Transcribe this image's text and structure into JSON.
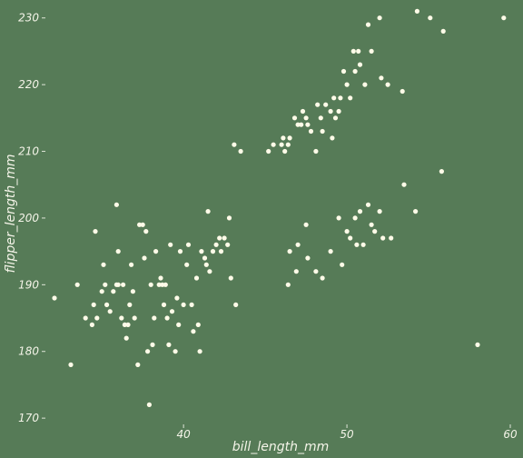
{
  "colors": {
    "background": "#567b57",
    "point": "#fffbe8",
    "text": "#f4f4e8",
    "tick": "#dfe6d8"
  },
  "chart_data": {
    "type": "scatter",
    "title": "",
    "xlabel": "bill_length_mm",
    "ylabel": "flipper_length_mm",
    "xlim": [
      31.6,
      60.0
    ],
    "ylim": [
      169.2,
      231.6
    ],
    "xticks": [
      40,
      50,
      60
    ],
    "yticks": [
      170,
      180,
      190,
      200,
      210,
      220,
      230
    ],
    "xtick_labels": [
      "40",
      "50",
      "60"
    ],
    "ytick_labels": [
      "170",
      "180",
      "190",
      "200",
      "210",
      "220",
      "230"
    ],
    "grid": false,
    "legend": "none",
    "points": [
      [
        32.1,
        188
      ],
      [
        33.1,
        178
      ],
      [
        33.5,
        190
      ],
      [
        34.0,
        185
      ],
      [
        34.4,
        184
      ],
      [
        34.5,
        187
      ],
      [
        34.6,
        198
      ],
      [
        34.7,
        185
      ],
      [
        35.0,
        189
      ],
      [
        35.1,
        193
      ],
      [
        35.2,
        190
      ],
      [
        35.3,
        187
      ],
      [
        35.5,
        186
      ],
      [
        35.7,
        189
      ],
      [
        35.9,
        190
      ],
      [
        35.9,
        202
      ],
      [
        36.0,
        195
      ],
      [
        36.0,
        190
      ],
      [
        36.2,
        185
      ],
      [
        36.3,
        190
      ],
      [
        36.4,
        184
      ],
      [
        36.5,
        182
      ],
      [
        36.6,
        184
      ],
      [
        36.7,
        187
      ],
      [
        36.8,
        193
      ],
      [
        36.9,
        189
      ],
      [
        37.0,
        185
      ],
      [
        37.2,
        178
      ],
      [
        37.3,
        199
      ],
      [
        37.5,
        199
      ],
      [
        37.6,
        194
      ],
      [
        37.7,
        198
      ],
      [
        37.8,
        180
      ],
      [
        37.9,
        172
      ],
      [
        38.0,
        190
      ],
      [
        38.1,
        181
      ],
      [
        38.2,
        185
      ],
      [
        38.3,
        195
      ],
      [
        38.5,
        190
      ],
      [
        38.6,
        191
      ],
      [
        38.7,
        190
      ],
      [
        38.8,
        187
      ],
      [
        38.9,
        190
      ],
      [
        39.0,
        185
      ],
      [
        39.1,
        181
      ],
      [
        39.2,
        196
      ],
      [
        39.3,
        186
      ],
      [
        39.5,
        180
      ],
      [
        39.6,
        188
      ],
      [
        39.7,
        184
      ],
      [
        39.8,
        195
      ],
      [
        40.0,
        187
      ],
      [
        40.2,
        193
      ],
      [
        40.3,
        196
      ],
      [
        40.5,
        187
      ],
      [
        40.6,
        183
      ],
      [
        40.8,
        191
      ],
      [
        40.9,
        184
      ],
      [
        41.0,
        180
      ],
      [
        41.1,
        195
      ],
      [
        41.3,
        194
      ],
      [
        41.4,
        193
      ],
      [
        41.5,
        201
      ],
      [
        41.6,
        192
      ],
      [
        41.8,
        195
      ],
      [
        42.0,
        196
      ],
      [
        42.2,
        197
      ],
      [
        42.3,
        195
      ],
      [
        42.5,
        197
      ],
      [
        42.7,
        196
      ],
      [
        42.8,
        200
      ],
      [
        42.9,
        191
      ],
      [
        43.1,
        211
      ],
      [
        43.2,
        187
      ],
      [
        43.5,
        210
      ],
      [
        45.2,
        210
      ],
      [
        45.5,
        211
      ],
      [
        46.0,
        211
      ],
      [
        46.1,
        212
      ],
      [
        46.2,
        210
      ],
      [
        46.4,
        211
      ],
      [
        46.5,
        212
      ],
      [
        46.8,
        215
      ],
      [
        47.0,
        214
      ],
      [
        47.2,
        214
      ],
      [
        47.3,
        216
      ],
      [
        47.5,
        215
      ],
      [
        47.6,
        214
      ],
      [
        47.8,
        213
      ],
      [
        48.1,
        210
      ],
      [
        48.2,
        217
      ],
      [
        48.4,
        215
      ],
      [
        48.5,
        213
      ],
      [
        48.7,
        217
      ],
      [
        49.0,
        216
      ],
      [
        49.1,
        212
      ],
      [
        49.2,
        218
      ],
      [
        49.3,
        215
      ],
      [
        49.5,
        216
      ],
      [
        49.6,
        218
      ],
      [
        49.8,
        222
      ],
      [
        50.0,
        220
      ],
      [
        50.2,
        218
      ],
      [
        50.4,
        225
      ],
      [
        50.5,
        222
      ],
      [
        50.7,
        225
      ],
      [
        50.8,
        223
      ],
      [
        51.1,
        220
      ],
      [
        51.3,
        229
      ],
      [
        51.5,
        225
      ],
      [
        52.0,
        230
      ],
      [
        52.1,
        221
      ],
      [
        52.5,
        220
      ],
      [
        53.4,
        219
      ],
      [
        54.3,
        231
      ],
      [
        55.1,
        230
      ],
      [
        55.9,
        228
      ],
      [
        59.6,
        230
      ],
      [
        46.4,
        190
      ],
      [
        46.5,
        195
      ],
      [
        46.9,
        192
      ],
      [
        47.0,
        196
      ],
      [
        47.5,
        199
      ],
      [
        47.6,
        194
      ],
      [
        48.1,
        192
      ],
      [
        48.5,
        191
      ],
      [
        49.0,
        195
      ],
      [
        49.5,
        200
      ],
      [
        49.7,
        193
      ],
      [
        50.0,
        198
      ],
      [
        50.2,
        197
      ],
      [
        50.5,
        200
      ],
      [
        50.6,
        196
      ],
      [
        50.8,
        201
      ],
      [
        51.0,
        196
      ],
      [
        51.3,
        202
      ],
      [
        51.5,
        199
      ],
      [
        51.7,
        198
      ],
      [
        52.0,
        201
      ],
      [
        52.2,
        197
      ],
      [
        52.7,
        197
      ],
      [
        53.5,
        205
      ],
      [
        54.2,
        201
      ],
      [
        55.8,
        207
      ],
      [
        58.0,
        181
      ]
    ]
  }
}
